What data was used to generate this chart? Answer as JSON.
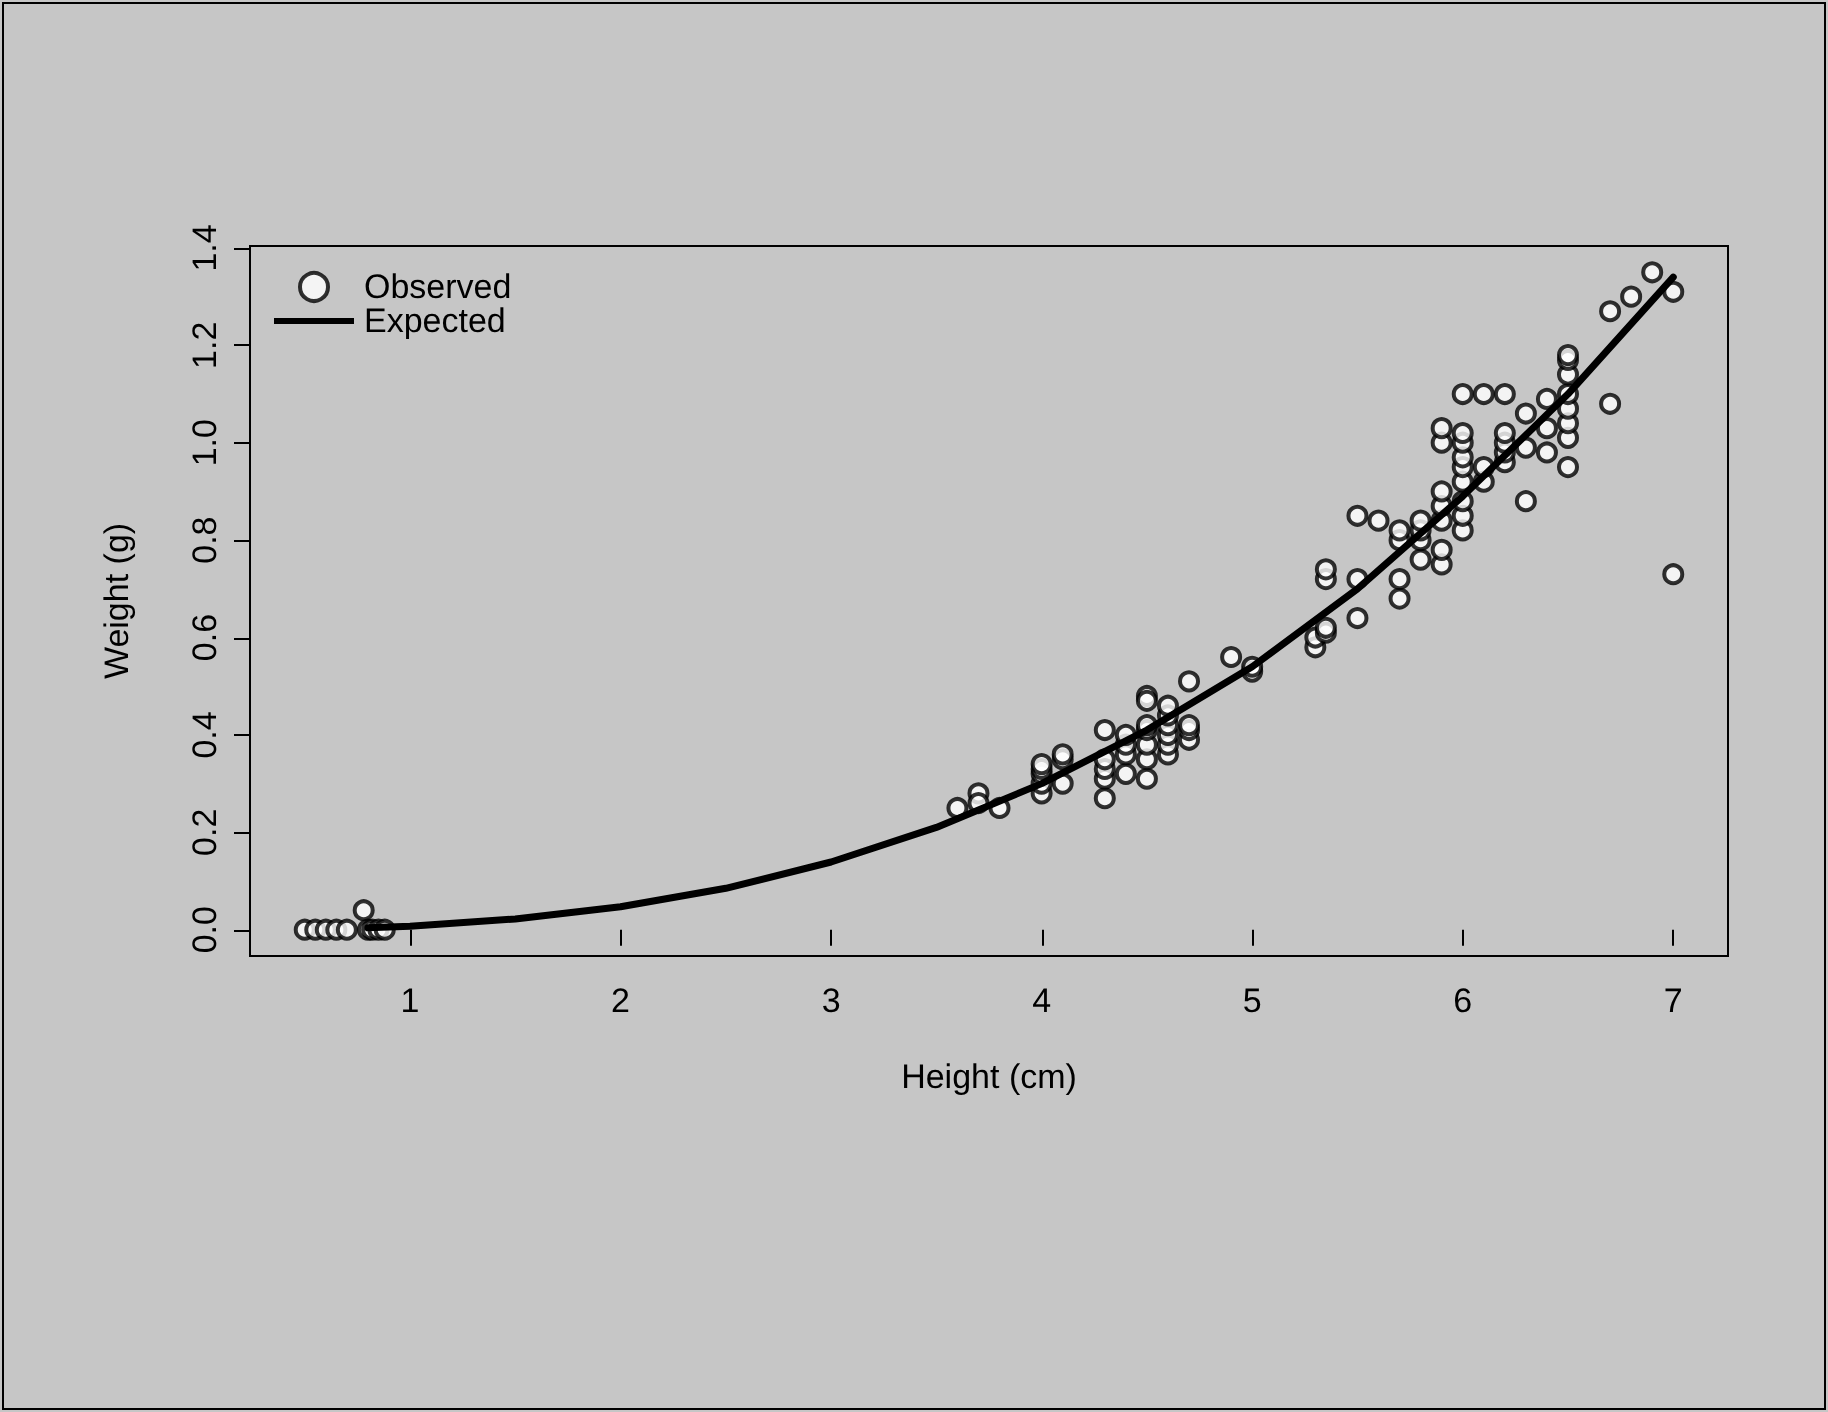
{
  "chart_data": {
    "type": "scatter",
    "xlabel": "Height (cm)",
    "ylabel": "Weight (g)",
    "xlim": [
      0.24,
      7.26
    ],
    "ylim": [
      -0.054,
      1.404
    ],
    "xticks": [
      1,
      2,
      3,
      4,
      5,
      6,
      7
    ],
    "yticks": [
      {
        "value": 0,
        "label": "0.0"
      },
      {
        "value": 0.2,
        "label": "0.2"
      },
      {
        "value": 0.4,
        "label": "0.4"
      },
      {
        "value": 0.6,
        "label": "0.6"
      },
      {
        "value": 0.8,
        "label": "0.8"
      },
      {
        "value": 1,
        "label": "1.0"
      },
      {
        "value": 1.2,
        "label": "1.2"
      },
      {
        "value": 1.4,
        "label": "1.4"
      }
    ],
    "grid": false,
    "legend": "top left",
    "series": [
      {
        "name": "Observed",
        "type": "scatter",
        "marker": "circle",
        "color": "#000000",
        "x": [
          0.5,
          0.55,
          0.6,
          0.65,
          0.7,
          0.78,
          0.8,
          0.82,
          0.85,
          0.88,
          3.6,
          3.7,
          3.7,
          3.8,
          4.0,
          4.0,
          4.0,
          4.0,
          4.0,
          4.1,
          4.1,
          4.1,
          4.3,
          4.3,
          4.3,
          4.3,
          4.3,
          4.4,
          4.4,
          4.4,
          4.4,
          4.5,
          4.5,
          4.5,
          4.5,
          4.5,
          4.5,
          4.5,
          4.6,
          4.6,
          4.6,
          4.6,
          4.6,
          4.6,
          4.7,
          4.7,
          4.7,
          4.7,
          4.9,
          5.0,
          5.0,
          5.3,
          5.3,
          5.35,
          5.35,
          5.35,
          5.35,
          5.5,
          5.5,
          5.5,
          5.6,
          5.7,
          5.7,
          5.7,
          5.7,
          5.8,
          5.8,
          5.8,
          5.8,
          5.9,
          5.9,
          5.9,
          5.9,
          5.9,
          5.9,
          5.9,
          6.0,
          6.0,
          6.0,
          6.0,
          6.0,
          6.0,
          6.0,
          6.0,
          6.0,
          6.1,
          6.1,
          6.1,
          6.2,
          6.2,
          6.2,
          6.2,
          6.2,
          6.3,
          6.3,
          6.3,
          6.4,
          6.4,
          6.4,
          6.5,
          6.5,
          6.5,
          6.5,
          6.5,
          6.5,
          6.5,
          6.5,
          6.7,
          6.7,
          6.8,
          6.9,
          7.0,
          7.0
        ],
        "values": [
          0,
          0,
          0,
          0,
          0,
          0.04,
          0,
          0,
          0,
          0,
          0.25,
          0.28,
          0.26,
          0.25,
          0.28,
          0.3,
          0.32,
          0.33,
          0.34,
          0.35,
          0.36,
          0.3,
          0.27,
          0.31,
          0.33,
          0.35,
          0.41,
          0.32,
          0.36,
          0.38,
          0.4,
          0.31,
          0.35,
          0.38,
          0.41,
          0.42,
          0.48,
          0.47,
          0.36,
          0.38,
          0.4,
          0.42,
          0.44,
          0.46,
          0.39,
          0.41,
          0.42,
          0.51,
          0.56,
          0.53,
          0.54,
          0.58,
          0.6,
          0.61,
          0.62,
          0.72,
          0.74,
          0.64,
          0.72,
          0.85,
          0.84,
          0.68,
          0.72,
          0.8,
          0.82,
          0.76,
          0.8,
          0.82,
          0.84,
          0.75,
          0.78,
          0.84,
          0.87,
          0.9,
          1.0,
          1.03,
          0.82,
          0.85,
          0.88,
          0.92,
          0.95,
          0.97,
          1.0,
          1.02,
          1.1,
          0.92,
          0.95,
          1.1,
          0.96,
          0.98,
          1.0,
          1.02,
          1.1,
          0.88,
          0.99,
          1.06,
          0.98,
          1.03,
          1.09,
          0.95,
          1.01,
          1.04,
          1.07,
          1.1,
          1.14,
          1.17,
          1.18,
          1.08,
          1.27,
          1.3,
          1.35,
          1.31,
          0.73
        ]
      },
      {
        "name": "Expected",
        "type": "line",
        "marker": "none",
        "line_style": "solid",
        "color": "#000000",
        "x": [
          0.8,
          1,
          1.5,
          2,
          2.5,
          3,
          3.5,
          4,
          4.5,
          5,
          5.5,
          6,
          6.5,
          7
        ],
        "values": [
          0.004,
          0.007,
          0.022,
          0.047,
          0.085,
          0.139,
          0.21,
          0.3,
          0.41,
          0.54,
          0.7,
          0.89,
          1.1,
          1.34
        ]
      }
    ]
  }
}
